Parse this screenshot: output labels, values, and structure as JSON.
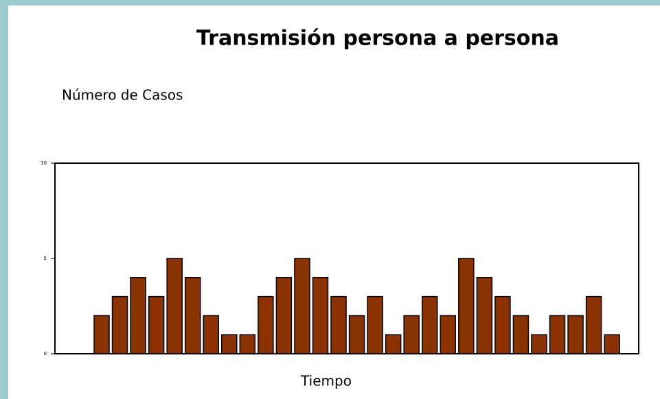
{
  "chart_data": {
    "type": "bar",
    "title": "Transmisión persona a persona",
    "y_label": "Número de Casos",
    "x_label": "Tiempo",
    "categories": [
      null,
      null,
      null,
      null,
      null,
      null,
      null,
      null,
      null,
      null,
      null,
      null,
      null,
      null,
      null,
      null,
      null,
      null,
      null,
      null,
      null,
      null,
      null,
      null,
      null,
      null,
      null,
      null,
      null
    ],
    "values": [
      2,
      3,
      4,
      3,
      5,
      4,
      2,
      1,
      1,
      3,
      4,
      5,
      4,
      3,
      2,
      3,
      1,
      2,
      3,
      2,
      5,
      4,
      3,
      2,
      1,
      2,
      2,
      3,
      1
    ],
    "color": "#8a3200",
    "ylim": [
      0,
      10
    ],
    "yticks": [
      0,
      5,
      10
    ],
    "grid": false
  }
}
